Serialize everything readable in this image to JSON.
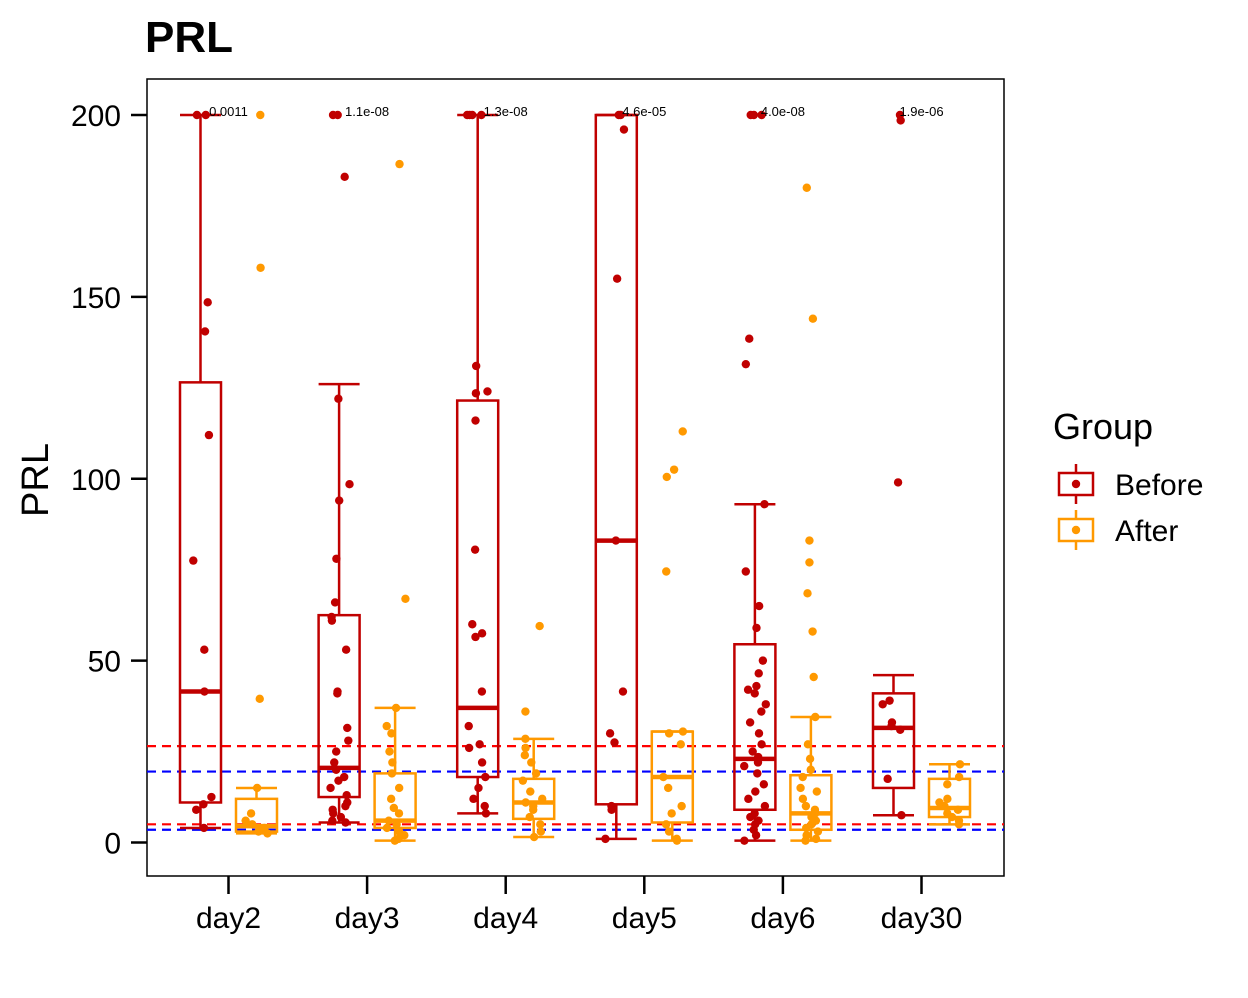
{
  "chart_data": {
    "type": "boxplot",
    "title": "PRL",
    "xlabel": "",
    "ylabel": "PRL",
    "ylim": [
      -9,
      210
    ],
    "yticks": [
      0,
      50,
      100,
      150,
      200
    ],
    "categories": [
      "day2",
      "day3",
      "day4",
      "day5",
      "day6",
      "day30"
    ],
    "legend": {
      "title": "Group",
      "position": "right",
      "entries": [
        {
          "name": "Before",
          "color": "#C00000"
        },
        {
          "name": "After",
          "color": "#FF9900"
        }
      ]
    },
    "pvalues": [
      "0.0011",
      "1.1e-08",
      "1.3e-08",
      "4.6e-05",
      "4.0e-08",
      "1.9e-06"
    ],
    "reference_lines": [
      {
        "value": 26.5,
        "color": "#FF0000",
        "style": "dashed"
      },
      {
        "value": 5,
        "color": "#FF0000",
        "style": "dashed"
      },
      {
        "value": 19.5,
        "color": "#0000FF",
        "style": "dashed"
      },
      {
        "value": 3.5,
        "color": "#0000FF",
        "style": "dashed"
      }
    ],
    "series": [
      {
        "name": "Before",
        "color": "#C00000",
        "boxes": [
          {
            "q1": 11,
            "median": 41.5,
            "q3": 126.5,
            "whisker_low": 4,
            "whisker_high": 200
          },
          {
            "q1": 12.5,
            "median": 20.5,
            "q3": 62.5,
            "whisker_low": 5.5,
            "whisker_high": 126
          },
          {
            "q1": 18,
            "median": 37,
            "q3": 121.5,
            "whisker_low": 8,
            "whisker_high": 200
          },
          {
            "q1": 10.5,
            "median": 83,
            "q3": 200,
            "whisker_low": 1,
            "whisker_high": 200
          },
          {
            "q1": 9,
            "median": 23,
            "q3": 54.5,
            "whisker_low": 0.5,
            "whisker_high": 93
          },
          {
            "q1": 15,
            "median": 31.5,
            "q3": 41,
            "whisker_low": 7.5,
            "whisker_high": 46
          }
        ],
        "points": [
          [
            4,
            9,
            10.5,
            12.5,
            41.5,
            53,
            77.5,
            112,
            140.5,
            148.5,
            200,
            200
          ],
          [
            5.5,
            6,
            7,
            8,
            9,
            10,
            11,
            13,
            15,
            17,
            18,
            20,
            22,
            25,
            28,
            31.5,
            41,
            41.5,
            53,
            61,
            62,
            66,
            78,
            94,
            98.5,
            122,
            183,
            200,
            200
          ],
          [
            8,
            10,
            12,
            15,
            18,
            22,
            26,
            27,
            32,
            41.5,
            56.5,
            57.5,
            60,
            80.5,
            116,
            123.5,
            124,
            131,
            200,
            200,
            200,
            200
          ],
          [
            1,
            9,
            10,
            27.5,
            30,
            41.5,
            83,
            155,
            196,
            200,
            200
          ],
          [
            0.5,
            2,
            3.5,
            5,
            6,
            7,
            8,
            10,
            12,
            14,
            16,
            19,
            21,
            22,
            23.5,
            25,
            27,
            30,
            33,
            36,
            38,
            41,
            42,
            43,
            46.5,
            50,
            59,
            65,
            74.5,
            93,
            131.5,
            138.5,
            200,
            200,
            200
          ],
          [
            7.5,
            17.5,
            31,
            32,
            33,
            38,
            39,
            99,
            198.5,
            200
          ]
        ]
      },
      {
        "name": "After",
        "color": "#FF9900",
        "boxes": [
          {
            "q1": 3,
            "median": 4.5,
            "q3": 12,
            "whisker_low": 2.5,
            "whisker_high": 15
          },
          {
            "q1": 4,
            "median": 6,
            "q3": 19,
            "whisker_low": 0.5,
            "whisker_high": 37
          },
          {
            "q1": 6.5,
            "median": 11,
            "q3": 17.5,
            "whisker_low": 1.5,
            "whisker_high": 28.5
          },
          {
            "q1": 5.5,
            "median": 18,
            "q3": 30.5,
            "whisker_low": 0.5,
            "whisker_high": 30.5
          },
          {
            "q1": 3.5,
            "median": 8,
            "q3": 18.5,
            "whisker_low": 0.5,
            "whisker_high": 34.5
          },
          {
            "q1": 7,
            "median": 9.5,
            "q3": 17.5,
            "whisker_low": 5,
            "whisker_high": 21.5
          }
        ],
        "points": [
          [
            2.5,
            3,
            4,
            5,
            6,
            8,
            15,
            39.5,
            158,
            200
          ],
          [
            0.5,
            1,
            2,
            3,
            4,
            5,
            6,
            8,
            9.5,
            12,
            15,
            19,
            22,
            25,
            30,
            32,
            37,
            67,
            186.5
          ],
          [
            1.5,
            3,
            5,
            7,
            9,
            10,
            11,
            12,
            14,
            17,
            19,
            22,
            24,
            26,
            28.5,
            36,
            59.5
          ],
          [
            0.5,
            1,
            3,
            5,
            8,
            10,
            15,
            18,
            27,
            30,
            30.5,
            74.5,
            100.5,
            102.5,
            113
          ],
          [
            0.5,
            1,
            2,
            3,
            4,
            5,
            6,
            7,
            8,
            9,
            10,
            12,
            14,
            15,
            18,
            20,
            23,
            27,
            34.5,
            45.5,
            58,
            68.5,
            77,
            83,
            144,
            180
          ],
          [
            5,
            6,
            7,
            8,
            9,
            10,
            11,
            12,
            16,
            18,
            21.5
          ]
        ]
      }
    ]
  }
}
